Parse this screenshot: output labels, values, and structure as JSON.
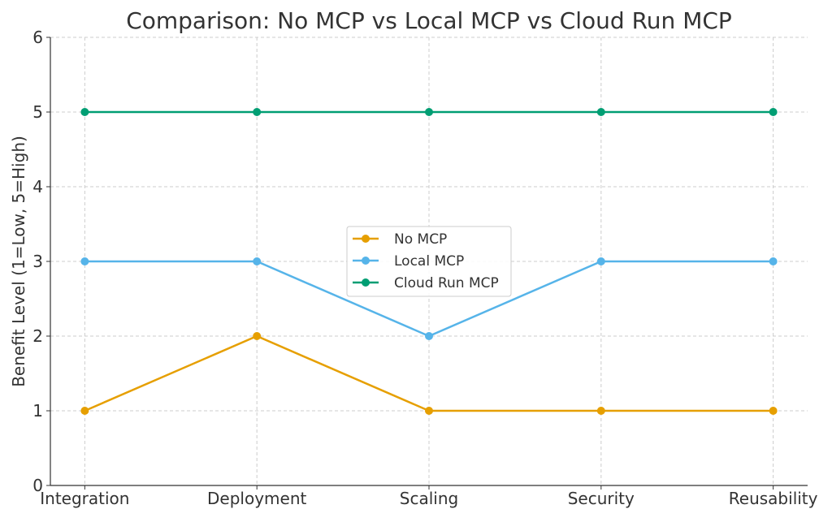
{
  "chart_data": {
    "type": "line",
    "title": "Comparison: No MCP vs Local MCP vs Cloud Run MCP",
    "xlabel": "",
    "ylabel": "Benefit Level (1=Low, 5=High)",
    "categories": [
      "Integration",
      "Deployment",
      "Scaling",
      "Security",
      "Reusability"
    ],
    "ylim": [
      0,
      6
    ],
    "yticks": [
      0,
      1,
      2,
      3,
      4,
      5,
      6
    ],
    "grid": true,
    "legend_position": "center",
    "series": [
      {
        "name": "No MCP",
        "color": "#E69F00",
        "values": [
          1,
          2,
          1,
          1,
          1
        ]
      },
      {
        "name": "Local MCP",
        "color": "#56B4E9",
        "values": [
          3,
          3,
          2,
          3,
          3
        ]
      },
      {
        "name": "Cloud Run MCP",
        "color": "#009E73",
        "values": [
          5,
          5,
          5,
          5,
          5
        ]
      }
    ]
  }
}
